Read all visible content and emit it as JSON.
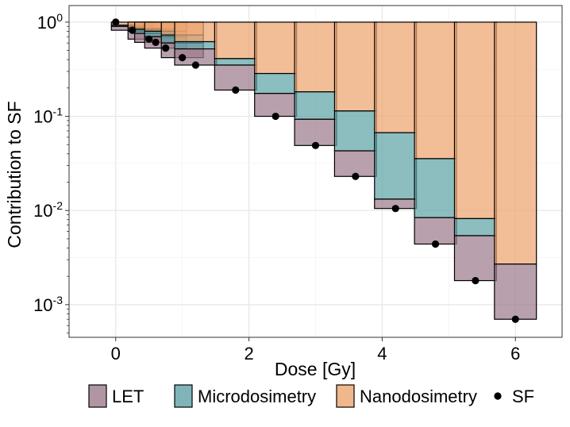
{
  "chart_data": {
    "type": "bar",
    "title": "",
    "xlabel": "Dose [Gy]",
    "ylabel": "Contribution to SF",
    "xlim": [
      -0.7,
      6.7
    ],
    "ylim": [
      0.00045,
      1.5
    ],
    "yscale": "log",
    "x_ticks": [
      0,
      2,
      4,
      6
    ],
    "x_tick_labels": [
      "0",
      "2",
      "4",
      "6"
    ],
    "y_ticks": [
      {
        "value": 1,
        "base": "10",
        "exp": "0"
      },
      {
        "value": 0.1,
        "base": "10",
        "exp": "-1"
      },
      {
        "value": 0.01,
        "base": "10",
        "exp": "-2"
      },
      {
        "value": 0.001,
        "base": "10",
        "exp": "-3"
      }
    ],
    "grid": true,
    "legend": {
      "position": "bottom",
      "items": [
        {
          "label": "LET",
          "kind": "box",
          "color": "#9e7b8d"
        },
        {
          "label": "Microdosimetry",
          "kind": "box",
          "color": "#5fa3a6"
        },
        {
          "label": "Nanodosimetry",
          "kind": "box",
          "color": "#eda56f"
        },
        {
          "label": "SF",
          "kind": "point",
          "color": "#000000"
        }
      ]
    },
    "colors": {
      "LET": "#9e7b8d",
      "Microdosimetry": "#5fa3a6",
      "Nanodosimetry": "#eda56f",
      "frame": "#000000"
    },
    "bar_width_gy": 0.63,
    "series_order": [
      "LET",
      "Microdosimetry",
      "Nanodosimetry"
    ],
    "dose": [
      0,
      0.25,
      0.5,
      0.6,
      0.75,
      1.0,
      1.2,
      1.8,
      2.4,
      3.0,
      3.6,
      4.2,
      4.8,
      5.4,
      6.0
    ],
    "sf": [
      1.0,
      0.82,
      0.66,
      0.61,
      0.53,
      0.42,
      0.35,
      0.19,
      0.1,
      0.049,
      0.023,
      0.0105,
      0.0044,
      0.0018,
      0.0007
    ],
    "let_top": [
      1.0,
      0.9,
      0.8,
      0.76,
      0.7,
      0.6,
      0.52,
      0.35,
      0.175,
      0.093,
      0.043,
      0.0132,
      0.0084,
      0.0054,
      0.0027
    ],
    "micro_top": [
      1.0,
      0.93,
      0.87,
      0.84,
      0.8,
      0.73,
      0.62,
      0.41,
      0.285,
      0.182,
      0.114,
      0.067,
      0.0355,
      0.0082,
      0.0027
    ],
    "nano_top": [
      1.0,
      1.0,
      1.0,
      1.0,
      1.0,
      1.0,
      1.0,
      1.0,
      1.0,
      1.0,
      1.0,
      1.0,
      1.0,
      1.0,
      1.0
    ]
  }
}
